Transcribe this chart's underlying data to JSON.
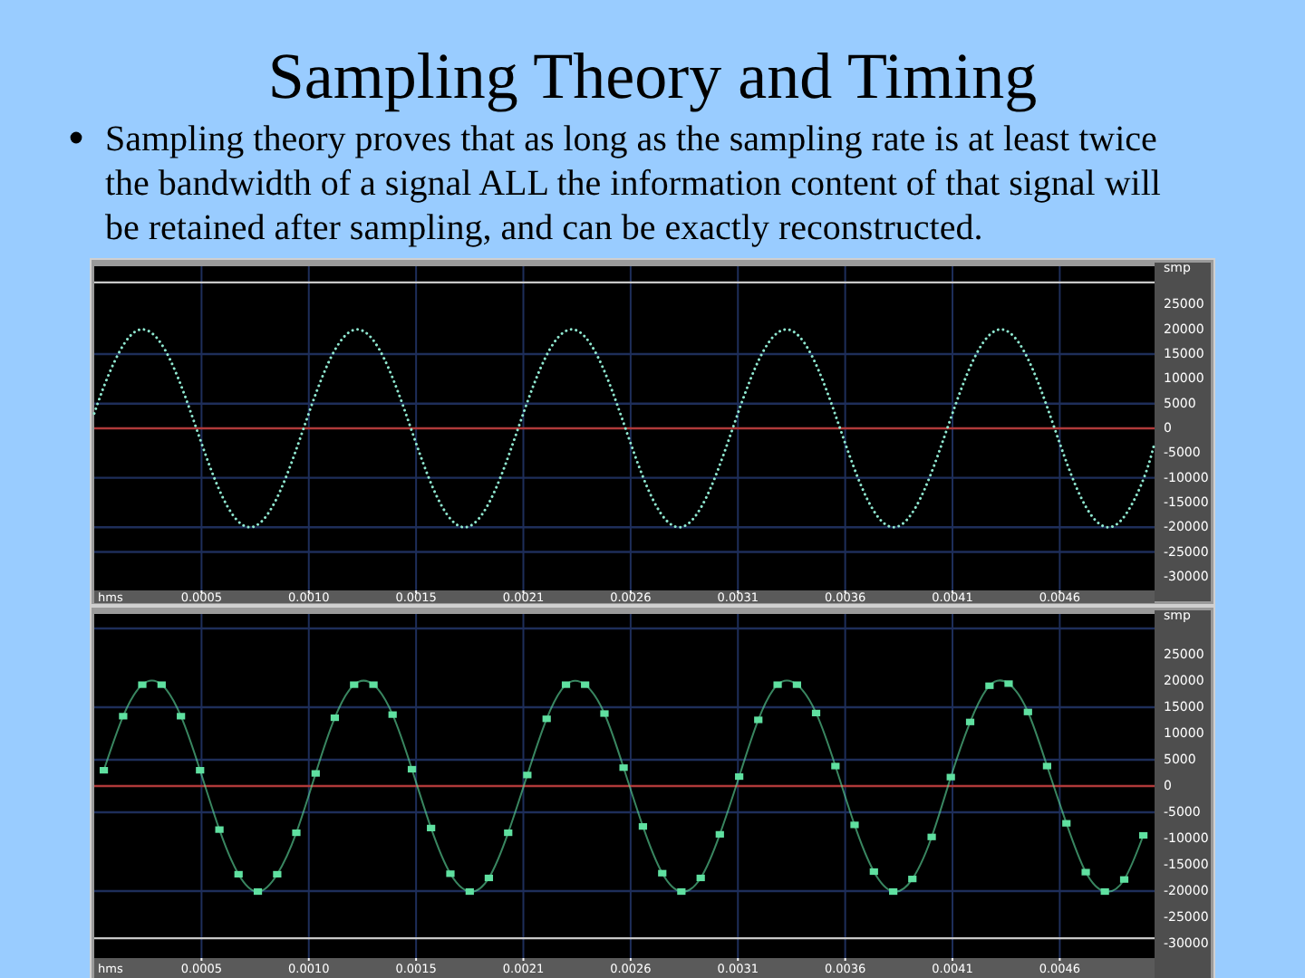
{
  "chart_data": [
    {
      "type": "line",
      "title": "Sampling Theory and Timing",
      "subtitle": "Sampling theory proves that as long as the sampling rate is at least twice the bandwidth of a signal ALL the information content of that signal will be retained after sampling, and can be exactly reconstructed.",
      "xlabel": "hms",
      "ylabel": "smp",
      "color": "#8fe8d0",
      "line_style": "dotted",
      "x": [
        0,
        6.1e-05,
        0.000147,
        0.000233,
        0.000319,
        0.000405,
        0.000491,
        0.000577,
        0.000663,
        0.000749,
        0.000835,
        0.000921,
        0.001007,
        0.001093,
        0.001179,
        0.001265,
        0.001351,
        0.001437,
        0.001523,
        0.001609,
        0.001695,
        0.001781,
        0.001867,
        0.001953,
        0.002039,
        0.002125,
        0.002211,
        0.002297,
        0.002383,
        0.002469,
        0.002555,
        0.002641,
        0.002727,
        0.002813,
        0.002899,
        0.002985,
        0.003071,
        0.003157,
        0.003243,
        0.003329,
        0.003415,
        0.003501,
        0.003587,
        0.003673,
        0.003759,
        0.003845,
        0.003931,
        0.004017,
        0.004103,
        0.004189,
        0.004275,
        0.004361,
        0.004447,
        0.004533,
        0.004619,
        0.004705,
        0.004791,
        0.004877,
        0.004963,
        0.005049,
        0.0051
      ],
      "values": [
        3000,
        10000,
        17300,
        20000,
        17300,
        10000,
        0,
        -10000,
        -17300,
        -20000,
        -17300,
        -10000,
        0,
        10000,
        17300,
        20000,
        17300,
        10000,
        0,
        -10000,
        -17300,
        -20000,
        -17300,
        -10000,
        0,
        10000,
        17300,
        20000,
        17300,
        10000,
        0,
        -10000,
        -17300,
        -20000,
        -17300,
        -10000,
        0,
        10000,
        17300,
        20000,
        17300,
        10000,
        0,
        -10000,
        -17300,
        -20000,
        -17300,
        -10000,
        0,
        10000,
        17300,
        20000,
        17300,
        10000,
        0,
        -10000,
        -17300,
        -20000,
        -17300,
        -10000,
        -3000
      ],
      "xlim": [
        0,
        0.0051
      ],
      "xticks": [
        {
          "value": 0.000516,
          "label": "0.0005"
        },
        {
          "value": 0.001032,
          "label": "0.0010"
        },
        {
          "value": 0.001548,
          "label": "0.0015"
        },
        {
          "value": 0.002064,
          "label": "0.0021"
        },
        {
          "value": 0.00258,
          "label": "0.0026"
        },
        {
          "value": 0.003096,
          "label": "0.0031"
        },
        {
          "value": 0.003612,
          "label": "0.0036"
        },
        {
          "value": 0.004128,
          "label": "0.0041"
        },
        {
          "value": 0.004644,
          "label": "0.0046"
        }
      ],
      "ylim": [
        -32768,
        32767
      ],
      "yticks": [
        25000,
        20000,
        15000,
        10000,
        5000,
        0,
        -5000,
        -10000,
        -15000,
        -20000,
        -25000,
        -30000
      ],
      "grid": "x",
      "ref_lines": [
        {
          "axis": "y",
          "value": 29500,
          "color": "#c8c8c8"
        },
        {
          "axis": "y",
          "value": 15000,
          "color": "#1e2e5a"
        },
        {
          "axis": "y",
          "value": 5000,
          "color": "#1e2e5a"
        },
        {
          "axis": "y",
          "value": -10000,
          "color": "#1e2e5a"
        },
        {
          "axis": "y",
          "value": -20000,
          "color": "#1e2e5a"
        },
        {
          "axis": "y",
          "value": -25000,
          "color": "#1e2e5a"
        },
        {
          "axis": "y",
          "value": 0,
          "color": "#b03a3a"
        }
      ]
    },
    {
      "type": "line",
      "xlabel": "hms",
      "ylabel": "smp",
      "color": "#5fe0a0",
      "marker": "square",
      "line_style": "solid",
      "x": [
        4.6e-05,
        0.000139,
        0.000231,
        0.000324,
        0.000417,
        0.000509,
        0.000602,
        0.000694,
        0.000787,
        0.00088,
        0.000972,
        0.001065,
        0.001157,
        0.00125,
        0.001343,
        0.001435,
        0.001528,
        0.00162,
        0.001713,
        0.001806,
        0.001898,
        0.001991,
        0.002083,
        0.002176,
        0.002269,
        0.002361,
        0.002454,
        0.002546,
        0.002639,
        0.002732,
        0.002824,
        0.002917,
        0.003009,
        0.003102,
        0.003194,
        0.003287,
        0.00338,
        0.003472,
        0.003565,
        0.003657,
        0.00375,
        0.003843,
        0.003935,
        0.004028,
        0.00412,
        0.004213,
        0.004306,
        0.004398,
        0.004491,
        0.004583,
        0.004676,
        0.004769,
        0.004861,
        0.004954,
        0.005046
      ],
      "values": [
        3000,
        13300,
        19300,
        19300,
        13300,
        3000,
        -8300,
        -16800,
        -20100,
        -16800,
        -8900,
        2400,
        13000,
        19300,
        19300,
        13600,
        3200,
        -8000,
        -16700,
        -20100,
        -17500,
        -8900,
        2100,
        12800,
        19300,
        19300,
        13800,
        3500,
        -7700,
        -16600,
        -20100,
        -17500,
        -9200,
        1800,
        12600,
        19300,
        19300,
        13900,
        3800,
        -7400,
        -16300,
        -20100,
        -17700,
        -9700,
        1700,
        12200,
        19100,
        19500,
        14100,
        3800,
        -7100,
        -16400,
        -20100,
        -17800,
        -9400
      ],
      "xlim": [
        0,
        0.0051
      ],
      "xticks": [
        {
          "value": 0.000516,
          "label": "0.0005"
        },
        {
          "value": 0.001032,
          "label": "0.0010"
        },
        {
          "value": 0.001548,
          "label": "0.0015"
        },
        {
          "value": 0.002064,
          "label": "0.0021"
        },
        {
          "value": 0.00258,
          "label": "0.0026"
        },
        {
          "value": 0.003096,
          "label": "0.0031"
        },
        {
          "value": 0.003612,
          "label": "0.0036"
        },
        {
          "value": 0.004128,
          "label": "0.0041"
        },
        {
          "value": 0.004644,
          "label": "0.0046"
        }
      ],
      "ylim": [
        -32768,
        32767
      ],
      "yticks": [
        25000,
        20000,
        15000,
        10000,
        5000,
        0,
        -5000,
        -10000,
        -15000,
        -20000,
        -25000,
        -30000
      ],
      "grid": "x",
      "ref_lines": [
        {
          "axis": "y",
          "value": 30000,
          "color": "#1e2e5a"
        },
        {
          "axis": "y",
          "value": 15000,
          "color": "#1e2e5a"
        },
        {
          "axis": "y",
          "value": 5000,
          "color": "#1e2e5a"
        },
        {
          "axis": "y",
          "value": -5000,
          "color": "#1e2e5a"
        },
        {
          "axis": "y",
          "value": -20000,
          "color": "#1e2e5a"
        },
        {
          "axis": "y",
          "value": -29000,
          "color": "#c8c8c8"
        },
        {
          "axis": "y",
          "value": 0,
          "color": "#b03a3a"
        }
      ]
    }
  ]
}
